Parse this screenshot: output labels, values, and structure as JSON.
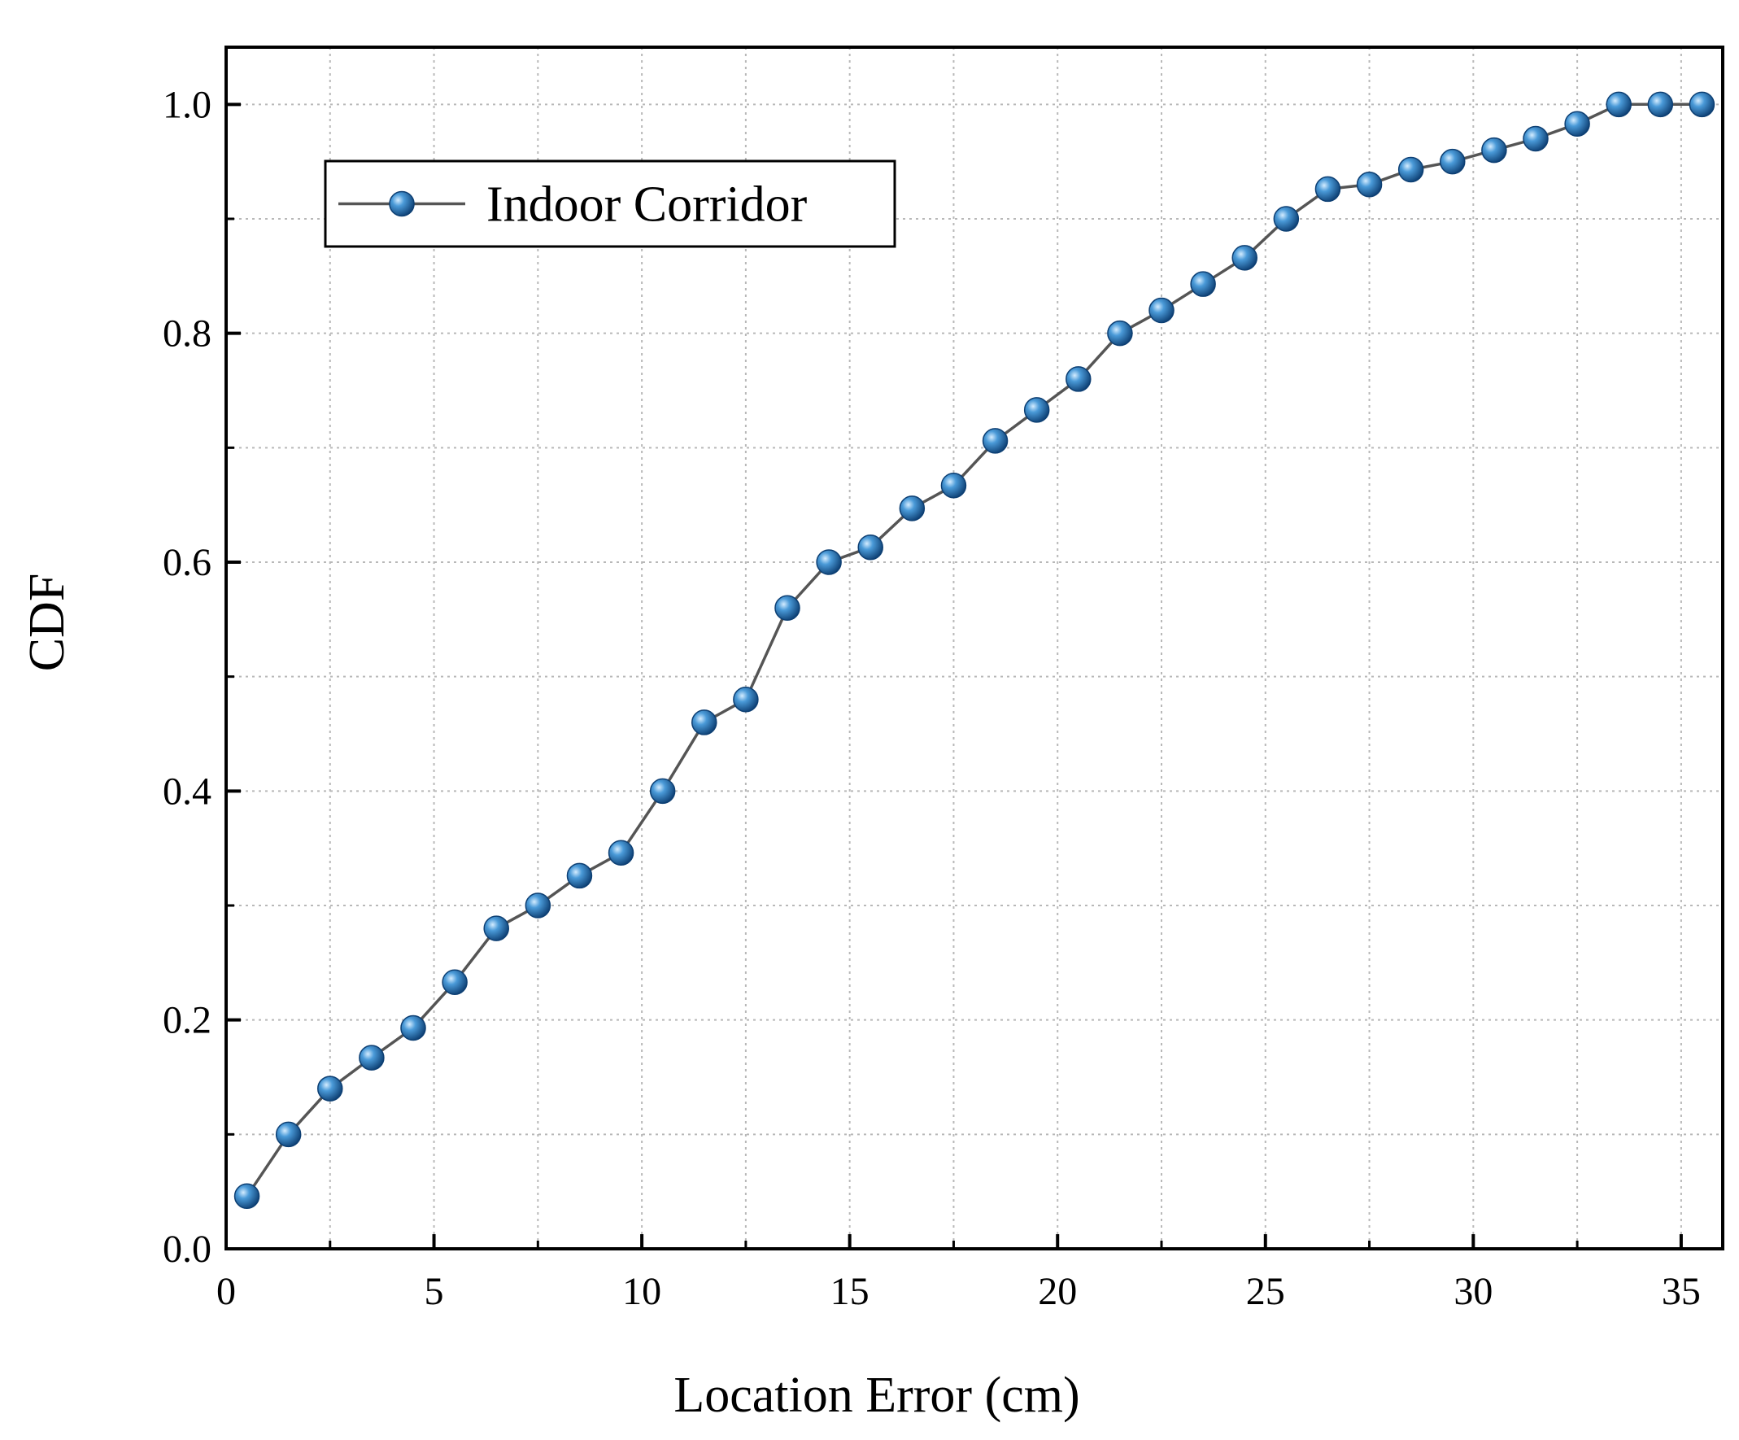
{
  "chart_data": {
    "type": "line",
    "title": "",
    "xlabel": "Location Error (cm)",
    "ylabel": "CDF",
    "xlim": [
      0,
      36
    ],
    "ylim": [
      0,
      1.05
    ],
    "x_ticks": [
      "0",
      "5",
      "10",
      "15",
      "20",
      "25",
      "30",
      "35"
    ],
    "y_ticks": [
      "0.0",
      "0.2",
      "0.4",
      "0.6",
      "0.8",
      "1.0"
    ],
    "grid": true,
    "legend_position": "top-left",
    "colors": {
      "line": "#555555",
      "marker": "#1f6fb4",
      "marker_highlight": "#9fd0f5",
      "marker_edge": "#0d3f73"
    },
    "series": [
      {
        "name": "Indoor Corridor",
        "x": [
          0.5,
          1.5,
          2.5,
          3.5,
          4.5,
          5.5,
          6.5,
          7.5,
          8.5,
          9.5,
          10.5,
          11.5,
          12.5,
          13.5,
          14.5,
          15.5,
          16.5,
          17.5,
          18.5,
          19.5,
          20.5,
          21.5,
          22.5,
          23.5,
          24.5,
          25.5,
          26.5,
          27.5,
          28.5,
          29.5,
          30.5,
          31.5,
          32.5,
          33.5,
          34.5,
          35.5
        ],
        "y": [
          0.046,
          0.1,
          0.14,
          0.167,
          0.193,
          0.233,
          0.28,
          0.3,
          0.326,
          0.346,
          0.4,
          0.46,
          0.48,
          0.56,
          0.6,
          0.613,
          0.647,
          0.667,
          0.706,
          0.733,
          0.76,
          0.8,
          0.82,
          0.843,
          0.866,
          0.9,
          0.926,
          0.93,
          0.943,
          0.95,
          0.96,
          0.97,
          0.983,
          1.0,
          1.0,
          1.0
        ]
      }
    ]
  }
}
